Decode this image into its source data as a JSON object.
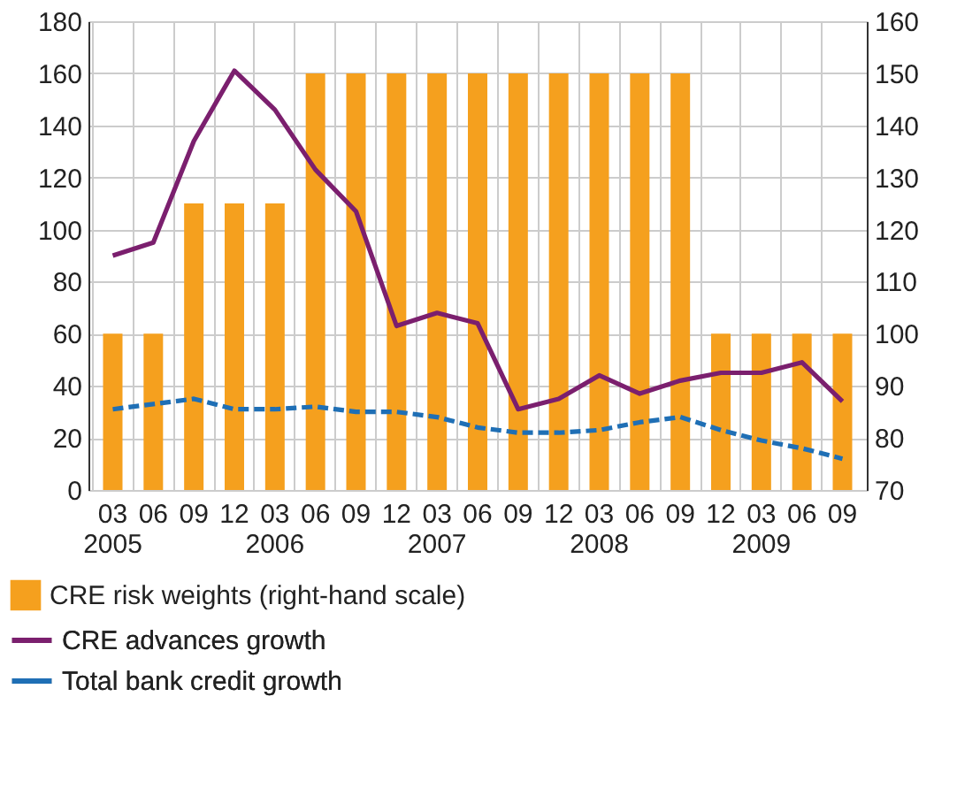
{
  "chart_data": {
    "type": "bar",
    "categories": [
      "03\n2005",
      "06",
      "09",
      "12",
      "03\n2006",
      "06",
      "09",
      "12",
      "03\n2007",
      "06",
      "09",
      "12",
      "03\n2008",
      "06",
      "09",
      "12",
      "03\n2009",
      "06",
      "09"
    ],
    "series": [
      {
        "name": "CRE risk weights (right-hand scale)",
        "axis": "y2",
        "color": "#f5a01e",
        "values": [
          100,
          100,
          125,
          125,
          125,
          150,
          150,
          150,
          150,
          150,
          150,
          150,
          150,
          150,
          150,
          100,
          100,
          100,
          100
        ]
      },
      {
        "name": "CRE advances growth",
        "type": "line",
        "line_style": "solid",
        "color": "#7b1f6e",
        "values": [
          90,
          95,
          134,
          161,
          146,
          123,
          107,
          63,
          68,
          64,
          31,
          35,
          44,
          37,
          42,
          45,
          45,
          49,
          34
        ]
      },
      {
        "name": "Total bank credit growth",
        "type": "line",
        "line_style": "dashed",
        "color": "#1f6fb5",
        "values": [
          31,
          33,
          35,
          31,
          31,
          32,
          30,
          30,
          28,
          24,
          22,
          22,
          23,
          26,
          28,
          23,
          19,
          16,
          12
        ]
      }
    ],
    "ylim": [
      0,
      180
    ],
    "yticks": [
      0,
      20,
      40,
      60,
      80,
      100,
      120,
      140,
      160,
      180
    ],
    "y2lim": [
      70,
      160
    ],
    "y2ticks": [
      70,
      80,
      90,
      100,
      110,
      120,
      130,
      140,
      150,
      160
    ],
    "grid": true,
    "legend": "bottom",
    "marker": "none"
  }
}
